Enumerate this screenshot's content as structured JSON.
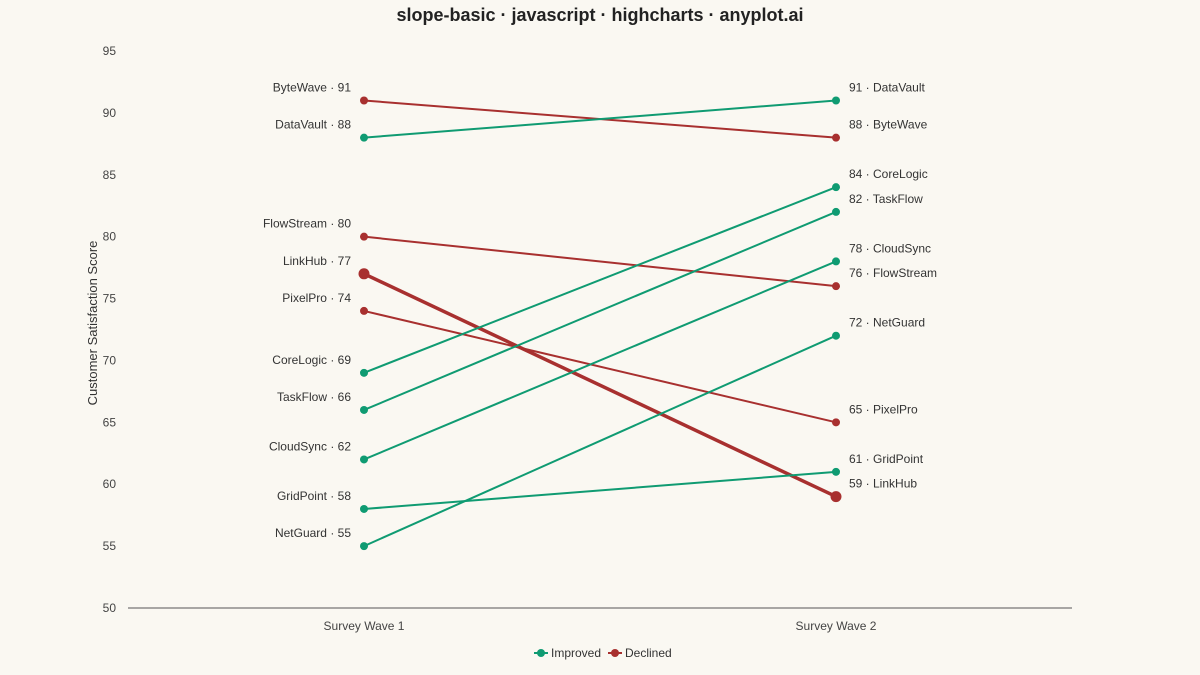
{
  "chart_data": {
    "type": "line",
    "title": "slope-basic · javascript · highcharts · anyplot.ai",
    "ylabel": "Customer Satisfaction Score",
    "ylim": [
      50,
      95
    ],
    "yticks": [
      50,
      55,
      60,
      65,
      70,
      75,
      80,
      85,
      90,
      95
    ],
    "categories": [
      "Survey Wave 1",
      "Survey Wave 2"
    ],
    "colors": {
      "Improved": "#0f9b72",
      "Declined": "#a8302f"
    },
    "legend": {
      "position": "bottom-center",
      "entries": [
        "Improved",
        "Declined"
      ]
    },
    "series": [
      {
        "label": "ByteWave",
        "values": [
          91,
          88
        ],
        "status": "Declined",
        "start_label": "ByteWave · 91",
        "end_label": "88 · ByteWave"
      },
      {
        "label": "DataVault",
        "values": [
          88,
          91
        ],
        "status": "Improved",
        "start_label": "DataVault · 88",
        "end_label": "91 · DataVault"
      },
      {
        "label": "FlowStream",
        "values": [
          80,
          76
        ],
        "status": "Declined",
        "start_label": "FlowStream · 80",
        "end_label": "76 · FlowStream"
      },
      {
        "label": "LinkHub",
        "values": [
          77,
          59
        ],
        "status": "Declined",
        "highlight": true,
        "start_label": "LinkHub · 77",
        "end_label": "59 · LinkHub"
      },
      {
        "label": "PixelPro",
        "values": [
          74,
          65
        ],
        "status": "Declined",
        "start_label": "PixelPro · 74",
        "end_label": "65 · PixelPro"
      },
      {
        "label": "CoreLogic",
        "values": [
          69,
          84
        ],
        "status": "Improved",
        "start_label": "CoreLogic · 69",
        "end_label": "84 · CoreLogic"
      },
      {
        "label": "TaskFlow",
        "values": [
          66,
          82
        ],
        "status": "Improved",
        "start_label": "TaskFlow · 66",
        "end_label": "82 · TaskFlow"
      },
      {
        "label": "CloudSync",
        "values": [
          62,
          78
        ],
        "status": "Improved",
        "start_label": "CloudSync · 62",
        "end_label": "78 · CloudSync"
      },
      {
        "label": "GridPoint",
        "values": [
          58,
          61
        ],
        "status": "Improved",
        "start_label": "GridPoint · 58",
        "end_label": "61 · GridPoint"
      },
      {
        "label": "NetGuard",
        "values": [
          55,
          72
        ],
        "status": "Improved",
        "start_label": "NetGuard · 55",
        "end_label": "72 · NetGuard"
      }
    ]
  }
}
